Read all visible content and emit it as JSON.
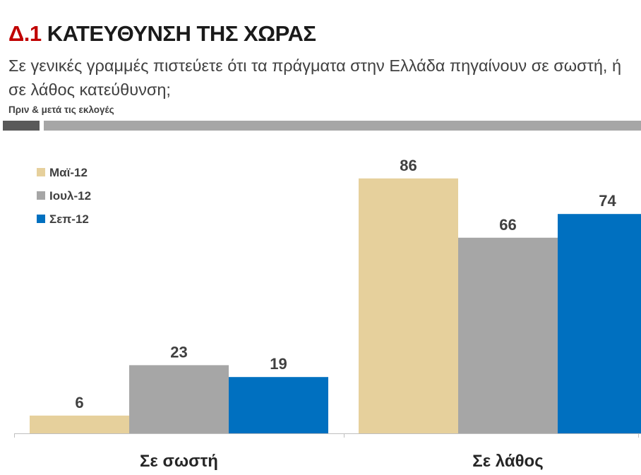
{
  "header": {
    "number": "Δ.1",
    "title": "ΚΑΤΕΥΘΥΝΣΗ ΤΗΣ ΧΩΡΑΣ",
    "question": "Σε γενικές γραμμές πιστεύετε ότι τα πράγματα στην Ελλάδα πηγαίνουν σε σωστή, ή σε λάθος κατεύθυνση;",
    "subtitle": "Πριν & μετά τις εκλογές"
  },
  "colors": {
    "series": [
      "#e6d09c",
      "#a6a6a6",
      "#0070c0"
    ]
  },
  "chart_data": {
    "type": "bar",
    "categories": [
      "Σε σωστή",
      "Σε λάθος"
    ],
    "series": [
      {
        "name": "Μαϊ-12",
        "values": [
          6,
          86
        ]
      },
      {
        "name": "Ιουλ-12",
        "values": [
          23,
          66
        ]
      },
      {
        "name": "Σεπ-12",
        "values": [
          19,
          74
        ]
      }
    ],
    "ylim": [
      0,
      100
    ],
    "legend": "top-left",
    "grid": false,
    "title": "",
    "xlabel": "",
    "ylabel": ""
  }
}
